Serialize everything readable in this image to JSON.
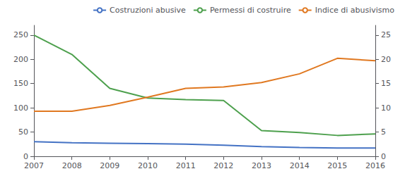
{
  "chart_data": {
    "type": "line",
    "x": [
      2007,
      2008,
      2009,
      2010,
      2011,
      2012,
      2013,
      2014,
      2015,
      2016
    ],
    "xlim": [
      2007,
      2016
    ],
    "xticks": [
      2007,
      2008,
      2009,
      2010,
      2011,
      2012,
      2013,
      2014,
      2015,
      2016
    ],
    "ylim": [
      0,
      270
    ],
    "yticks": [
      0,
      50,
      100,
      150,
      200,
      250
    ],
    "y2lim": [
      0,
      27
    ],
    "y2ticks": [
      0,
      5,
      10,
      15,
      20,
      25
    ],
    "grid": false,
    "legend": "upper right",
    "series": [
      {
        "name": "Costruzioni abusive",
        "color": "#4472c4",
        "values": [
          30,
          28,
          27,
          26,
          25,
          23,
          20,
          18,
          17,
          17
        ]
      },
      {
        "name": "Permessi di costruire",
        "color": "#4da04d",
        "values": [
          250,
          210,
          140,
          120,
          117,
          115,
          53,
          49,
          43,
          46
        ]
      },
      {
        "name": "Indice di abusivismo",
        "color": "#e07820",
        "axis": "y2",
        "values": [
          9.3,
          9.3,
          10.5,
          12.2,
          14.0,
          14.3,
          15.2,
          17.0,
          20.2,
          19.7
        ]
      }
    ]
  }
}
